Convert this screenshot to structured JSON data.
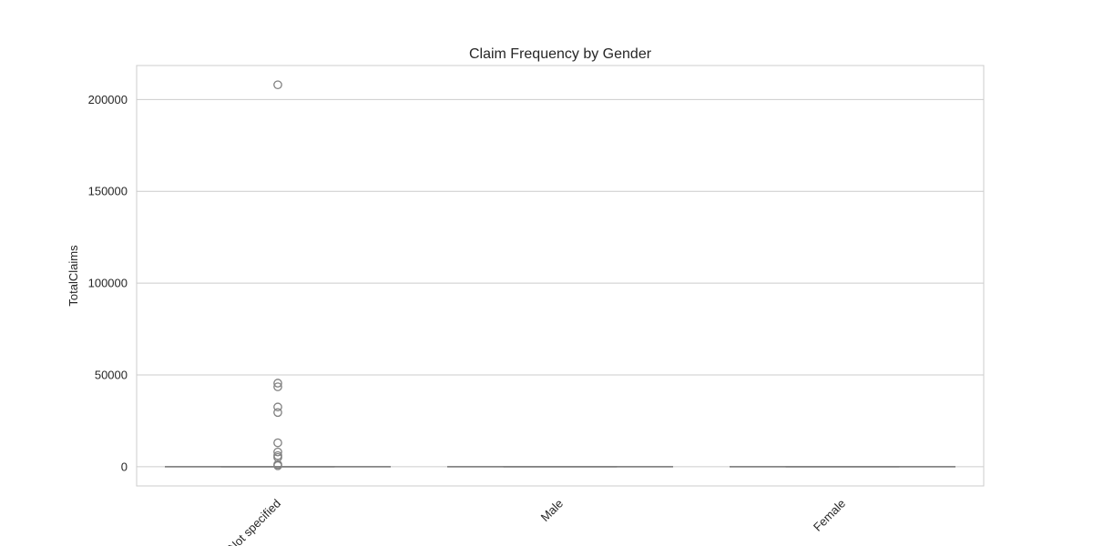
{
  "chart_data": {
    "type": "box",
    "title": "Claim Frequency by Gender",
    "xlabel": "",
    "ylabel": "TotalClaims",
    "ylim": [
      -10500,
      218500
    ],
    "yticks": [
      0,
      50000,
      100000,
      150000,
      200000
    ],
    "grid": "y",
    "categories": [
      "Not specified",
      "Male",
      "Female"
    ],
    "boxes": [
      {
        "category": "Not specified",
        "whisker_low": 0,
        "q1": 0,
        "median": 0,
        "q3": 0,
        "whisker_high": 0,
        "outliers": [
          208000,
          45500,
          43500,
          32500,
          29500,
          13000,
          8000,
          6000,
          5000,
          1200,
          500
        ]
      },
      {
        "category": "Male",
        "whisker_low": 0,
        "q1": 0,
        "median": 0,
        "q3": 0,
        "whisker_high": 0,
        "outliers": []
      },
      {
        "category": "Female",
        "whisker_low": 0,
        "q1": 0,
        "median": 0,
        "q3": 0,
        "whisker_high": 0,
        "outliers": []
      }
    ],
    "colors": {
      "grid": "#cccccc",
      "frame": "#cccccc",
      "box": "#808080",
      "text": "#262626"
    }
  }
}
